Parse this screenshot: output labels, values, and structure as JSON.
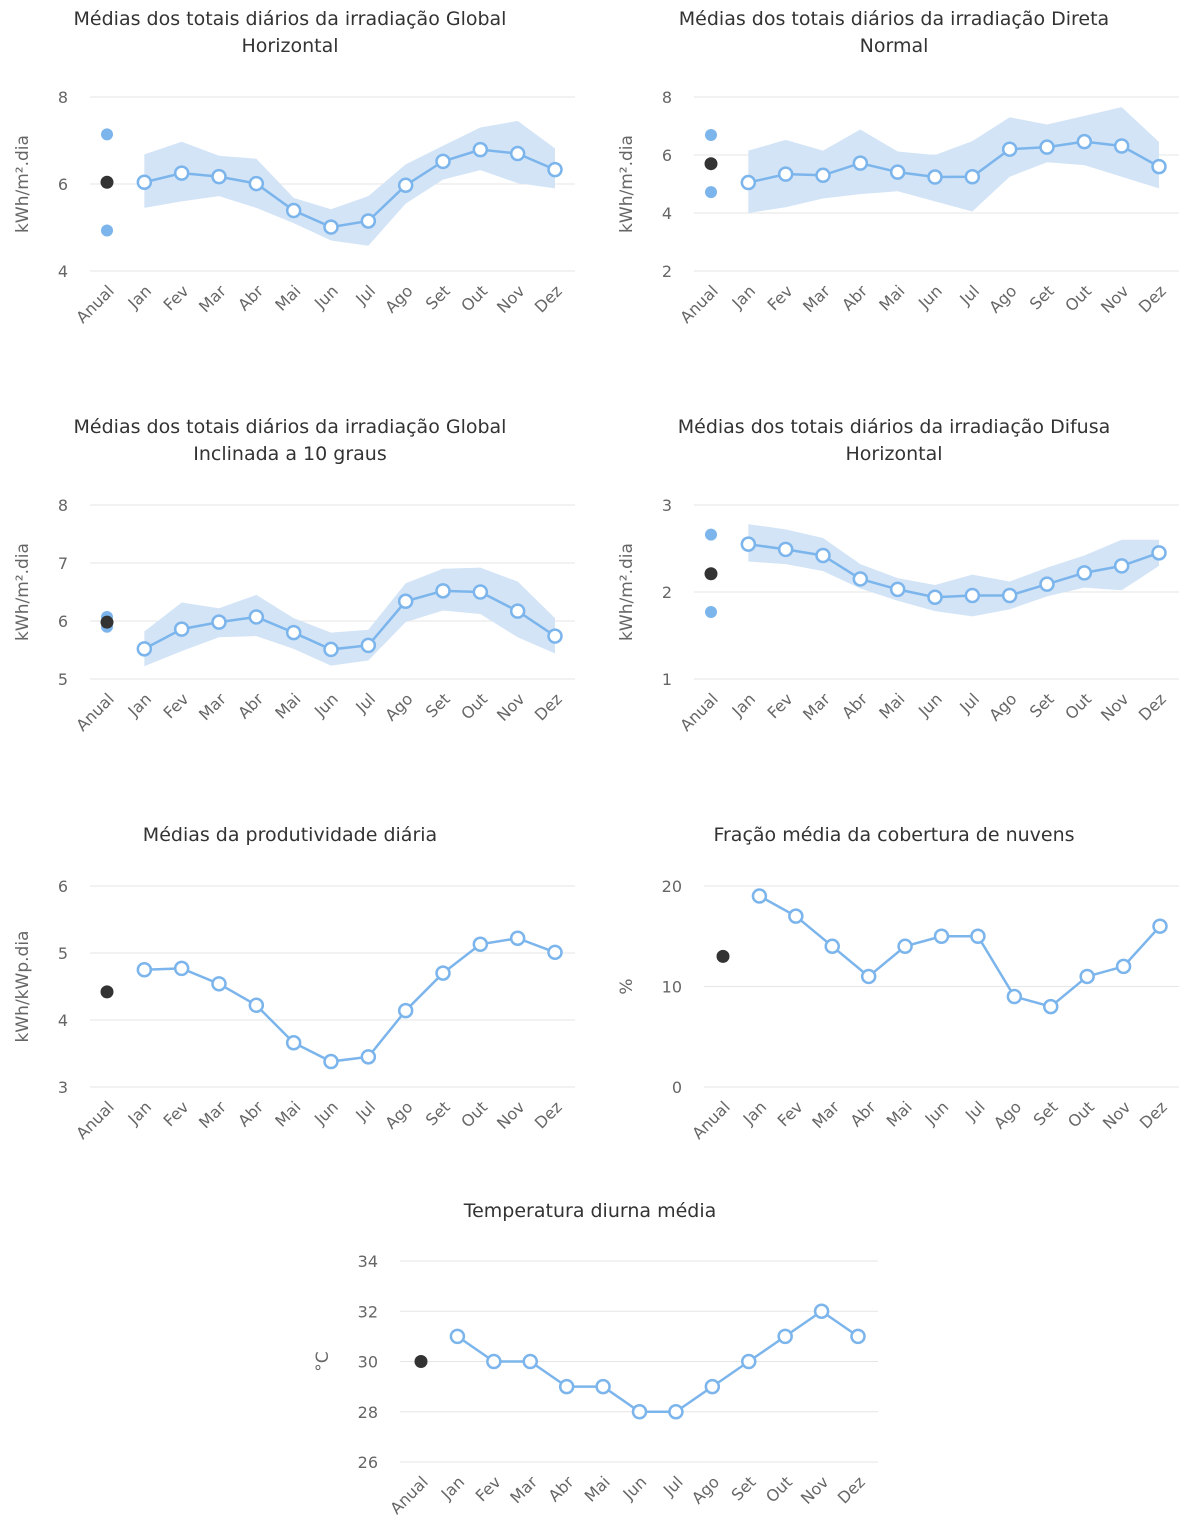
{
  "colors": {
    "line": "#7cb5ec",
    "band": "#d3e4f7",
    "annual": "#333333",
    "grid": "#e6e6e6",
    "tick": "#666666"
  },
  "months": [
    "Anual",
    "Jan",
    "Fev",
    "Mar",
    "Abr",
    "Mai",
    "Jun",
    "Jul",
    "Ago",
    "Set",
    "Out",
    "Nov",
    "Dez"
  ],
  "chart_data": [
    {
      "type": "line",
      "title": "Médias dos totais diários da irradiação Global Horizontal",
      "ylabel": "kWh/m².dia",
      "ylim": [
        4,
        8
      ],
      "yticks": [
        4,
        6,
        8
      ],
      "annual": {
        "value": 6.04,
        "min": 4.93,
        "max": 7.14
      },
      "series": [
        {
          "values": [
            6.04,
            6.25,
            6.17,
            6.01,
            5.39,
            5.01,
            5.15,
            5.97,
            6.52,
            6.79,
            6.7,
            6.33
          ]
        }
      ],
      "band": {
        "low": [
          5.45,
          5.6,
          5.72,
          5.45,
          5.1,
          4.7,
          4.58,
          5.55,
          6.1,
          6.32,
          6.02,
          5.9
        ],
        "high": [
          6.68,
          6.97,
          6.65,
          6.58,
          5.68,
          5.42,
          5.72,
          6.45,
          6.88,
          7.3,
          7.45,
          6.82
        ]
      },
      "grid": true
    },
    {
      "type": "line",
      "title": "Médias dos totais diários da irradiação Direta Normal",
      "ylabel": "kWh/m².dia",
      "ylim": [
        2,
        8
      ],
      "yticks": [
        2,
        4,
        6,
        8
      ],
      "annual": {
        "value": 5.7,
        "min": 4.72,
        "max": 6.69
      },
      "series": [
        {
          "values": [
            5.05,
            5.34,
            5.3,
            5.72,
            5.41,
            5.24,
            5.25,
            6.2,
            6.27,
            6.46,
            6.31,
            5.6
          ]
        }
      ],
      "band": {
        "low": [
          4.0,
          4.2,
          4.5,
          4.65,
          4.75,
          4.4,
          4.05,
          5.25,
          5.75,
          5.65,
          5.25,
          4.85
        ],
        "high": [
          6.15,
          6.52,
          6.15,
          6.88,
          6.12,
          6.0,
          6.48,
          7.3,
          7.05,
          7.35,
          7.65,
          6.45
        ]
      },
      "grid": true
    },
    {
      "type": "line",
      "title": "Médias dos totais diários da irradiação Global Inclinada a 10 graus",
      "ylabel": "kWh/m².dia",
      "ylim": [
        5,
        8
      ],
      "yticks": [
        5,
        6,
        7,
        8
      ],
      "annual": {
        "value": 5.98,
        "min": 5.9,
        "max": 6.07
      },
      "series": [
        {
          "values": [
            5.52,
            5.86,
            5.98,
            6.07,
            5.8,
            5.51,
            5.58,
            6.34,
            6.52,
            6.5,
            6.17,
            5.74
          ]
        }
      ],
      "band": {
        "low": [
          5.22,
          5.48,
          5.72,
          5.74,
          5.52,
          5.23,
          5.32,
          5.98,
          6.18,
          6.12,
          5.72,
          5.44
        ],
        "high": [
          5.82,
          6.32,
          6.22,
          6.45,
          6.05,
          5.8,
          5.85,
          6.65,
          6.9,
          6.92,
          6.68,
          6.05
        ]
      },
      "grid": true
    },
    {
      "type": "line",
      "title": "Médias dos totais diários da irradiação Difusa Horizontal",
      "ylabel": "kWh/m².dia",
      "ylim": [
        1,
        3
      ],
      "yticks": [
        1,
        2,
        3
      ],
      "annual": {
        "value": 2.21,
        "min": 1.77,
        "max": 2.66
      },
      "series": [
        {
          "values": [
            2.55,
            2.49,
            2.42,
            2.15,
            2.03,
            1.94,
            1.96,
            1.96,
            2.09,
            2.22,
            2.3,
            2.45
          ]
        }
      ],
      "band": {
        "low": [
          2.35,
          2.32,
          2.24,
          2.04,
          1.9,
          1.78,
          1.72,
          1.8,
          1.95,
          2.05,
          2.02,
          2.3
        ],
        "high": [
          2.78,
          2.72,
          2.62,
          2.32,
          2.16,
          2.08,
          2.2,
          2.12,
          2.28,
          2.42,
          2.6,
          2.6
        ]
      },
      "grid": true
    },
    {
      "type": "line",
      "title": "Médias da produtividade diária",
      "ylabel": "kWh/kWp.dia",
      "ylim": [
        3,
        6
      ],
      "yticks": [
        3,
        4,
        5,
        6
      ],
      "annual": {
        "value": 4.42
      },
      "series": [
        {
          "values": [
            4.75,
            4.77,
            4.54,
            4.22,
            3.66,
            3.38,
            3.45,
            4.14,
            4.7,
            5.13,
            5.22,
            5.01
          ]
        }
      ],
      "grid": true
    },
    {
      "type": "line",
      "title": "Fração média da cobertura de nuvens",
      "ylabel": "%",
      "ylim": [
        0,
        20
      ],
      "yticks": [
        0,
        10,
        20
      ],
      "annual": {
        "value": 13
      },
      "series": [
        {
          "values": [
            19,
            17,
            14,
            11,
            14,
            15,
            15,
            9,
            8,
            11,
            12,
            16
          ]
        }
      ],
      "grid": true
    },
    {
      "type": "line",
      "title": "Temperatura diurna média",
      "ylabel": "°C",
      "ylim": [
        26,
        34
      ],
      "yticks": [
        26,
        28,
        30,
        32,
        34
      ],
      "annual": {
        "value": 30
      },
      "series": [
        {
          "values": [
            31,
            30,
            30,
            29,
            29,
            28,
            28,
            29,
            30,
            31,
            32,
            31
          ]
        }
      ],
      "grid": true
    }
  ]
}
